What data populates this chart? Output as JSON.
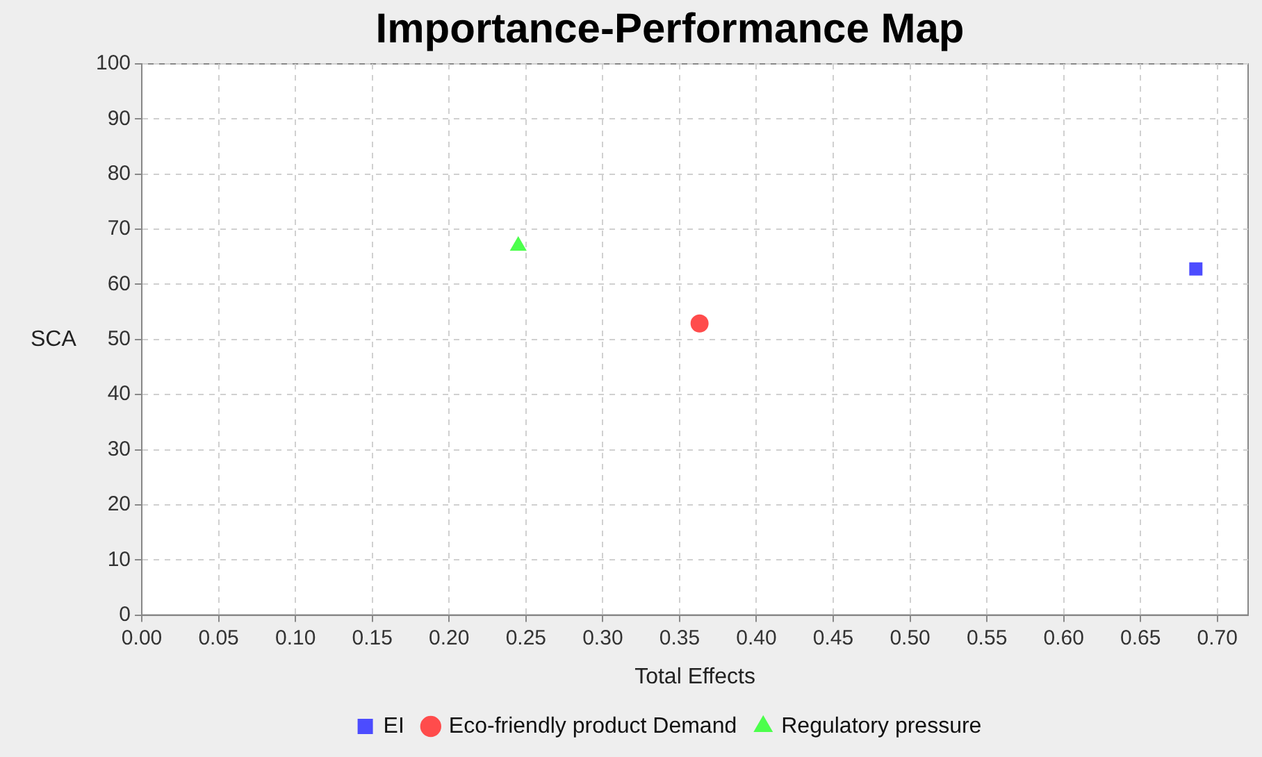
{
  "chart_data": {
    "type": "scatter",
    "title": "Importance-Performance Map",
    "xlabel": "Total Effects",
    "ylabel": "SCA",
    "xlim": [
      0,
      0.72
    ],
    "xticks": [
      {
        "value": 0,
        "label": "0.00"
      },
      {
        "value": 0.05,
        "label": "0.05"
      },
      {
        "value": 0.1,
        "label": "0.10"
      },
      {
        "value": 0.15,
        "label": "0.15"
      },
      {
        "value": 0.2,
        "label": "0.20"
      },
      {
        "value": 0.25,
        "label": "0.25"
      },
      {
        "value": 0.3,
        "label": "0.30"
      },
      {
        "value": 0.35,
        "label": "0.35"
      },
      {
        "value": 0.4,
        "label": "0.40"
      },
      {
        "value": 0.45,
        "label": "0.45"
      },
      {
        "value": 0.5,
        "label": "0.50"
      },
      {
        "value": 0.55,
        "label": "0.55"
      },
      {
        "value": 0.6,
        "label": "0.60"
      },
      {
        "value": 0.65,
        "label": "0.65"
      },
      {
        "value": 0.7,
        "label": "0.70"
      }
    ],
    "ylim": [
      0,
      100
    ],
    "yticks": [
      0,
      10,
      20,
      30,
      40,
      50,
      60,
      70,
      80,
      90,
      100
    ],
    "grid": true,
    "legend": "bottom",
    "series": [
      {
        "name": "EI",
        "color": "#4c4cff",
        "marker": "square",
        "x": [
          0.686
        ],
        "values": [
          62.8
        ]
      },
      {
        "name": "Eco-friendly product Demand",
        "color": "#ff4c4c",
        "marker": "circle",
        "x": [
          0.363
        ],
        "values": [
          52.9
        ]
      },
      {
        "name": "Regulatory pressure",
        "color": "#4cff4c",
        "marker": "triangle",
        "x": [
          0.245
        ],
        "values": [
          67
        ]
      }
    ]
  }
}
